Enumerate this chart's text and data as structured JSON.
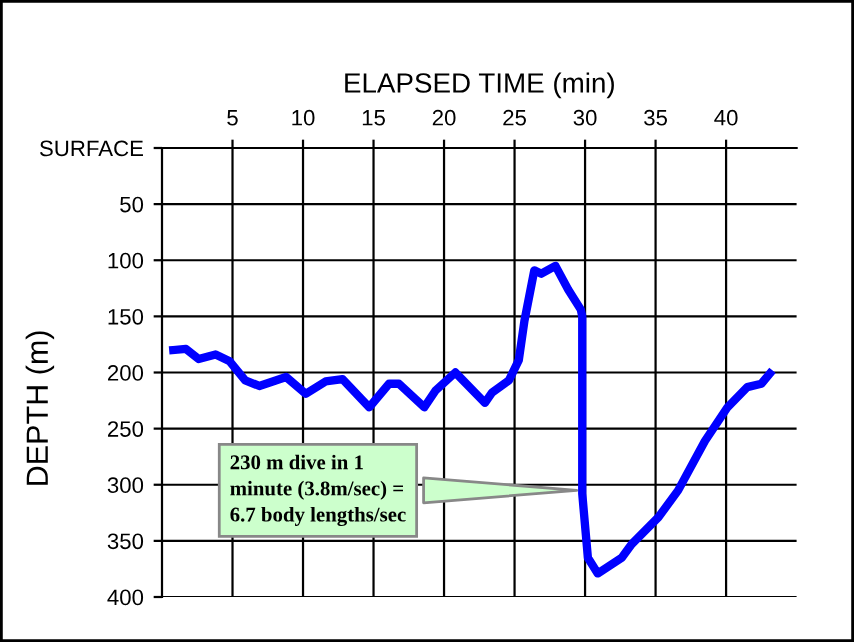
{
  "chart_data": {
    "type": "line",
    "xlabel": "ELAPSED TIME (min)",
    "ylabel": "DEPTH (m)",
    "x": [
      0.8,
      1.7,
      2.6,
      3.8,
      4.8,
      5.9,
      6.9,
      8.8,
      10.2,
      11.6,
      12.8,
      14.7,
      16.1,
      16.8,
      18.6,
      19.4,
      20.8,
      22.9,
      23.4,
      24.6,
      25.3,
      25.7,
      26.4,
      26.9,
      27.9,
      28.8,
      29.7,
      29.8,
      29.8,
      30.2,
      30.9,
      32.6,
      33.3,
      35.2,
      36.6,
      38.5,
      40.1,
      41.5,
      42.5,
      43.1
    ],
    "series": [
      {
        "color": "#0000ff",
        "values": [
          180,
          179,
          188,
          184,
          190,
          207,
          212,
          204,
          219,
          208,
          206,
          231,
          210,
          210,
          231,
          216,
          200,
          227,
          218,
          207,
          189,
          154,
          109,
          112,
          105,
          126,
          144,
          150,
          308,
          365,
          379,
          365,
          353,
          329,
          305,
          261,
          231,
          213,
          210,
          201
        ]
      }
    ],
    "xlim": [
      0,
      45
    ],
    "ylim": [
      400,
      0
    ],
    "xticks": [
      5,
      10,
      15,
      20,
      25,
      30,
      35,
      40
    ],
    "yticks": [
      {
        "value": 0,
        "label": "SURFACE"
      },
      50,
      100,
      150,
      200,
      250,
      300,
      350,
      400
    ],
    "grid": true,
    "marker": "none",
    "line_style": "solid",
    "annotations": [
      {
        "text": "230 m dive in 1\nminute (3.8m/sec) =\n6.7 body lengths/sec",
        "x": 29.8,
        "y": 305
      }
    ]
  }
}
